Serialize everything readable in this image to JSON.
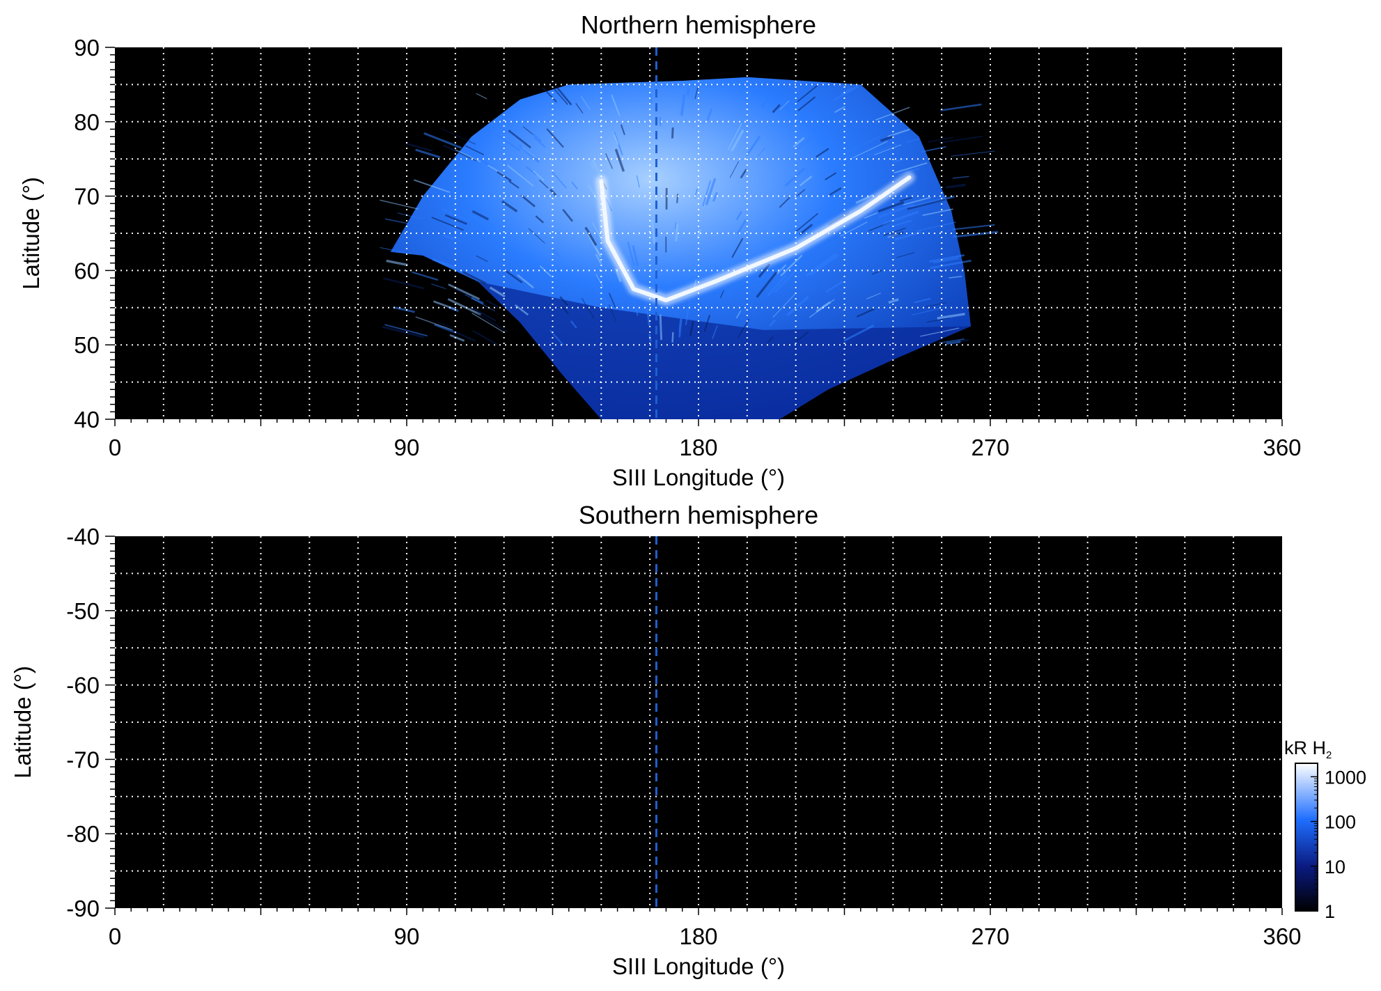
{
  "colors": {
    "background": "#ffffff",
    "plot_bg": "#000000",
    "grid": "#ffffff",
    "marker_line": "#1f5fd0",
    "aurora_dark": "#0a2a9a",
    "aurora_mid": "#1f6fff",
    "aurora_light": "#b9dcff"
  },
  "colorbar": {
    "label_main": "kR H",
    "label_sub": "2",
    "ticks": [
      "1000",
      "100",
      "10",
      "1"
    ],
    "tick_values": [
      1000,
      100,
      10,
      1
    ],
    "scale": "log",
    "range": [
      1,
      2000
    ]
  },
  "chart_data": [
    {
      "type": "heatmap",
      "title": "Northern hemisphere",
      "xlabel": "SIII Longitude (°)",
      "ylabel": "Latitude (°)",
      "xlim": [
        0,
        360
      ],
      "ylim": [
        40,
        90
      ],
      "xticks": [
        0,
        90,
        180,
        270,
        360
      ],
      "xtick_labels": [
        "0",
        "90",
        "180",
        "270",
        "360"
      ],
      "yticks": [
        90,
        80,
        70,
        60,
        50,
        40
      ],
      "ytick_labels": [
        "90",
        "80",
        "70",
        "60",
        "50",
        "40"
      ],
      "grid": true,
      "marker_longitude": 167,
      "coverage_top_latitude": 85,
      "aurora_oval": [
        {
          "lon": 150,
          "lat": 72
        },
        {
          "lon": 152,
          "lat": 64
        },
        {
          "lon": 160,
          "lat": 57.5
        },
        {
          "lon": 170,
          "lat": 56
        },
        {
          "lon": 185,
          "lat": 58.5
        },
        {
          "lon": 210,
          "lat": 63
        },
        {
          "lon": 230,
          "lat": 68
        },
        {
          "lon": 245,
          "lat": 72.5
        }
      ]
    },
    {
      "type": "heatmap",
      "title": "Southern hemisphere",
      "xlabel": "SIII Longitude (°)",
      "ylabel": "Latitude (°)",
      "xlim": [
        0,
        360
      ],
      "ylim": [
        -90,
        -40
      ],
      "xticks": [
        0,
        90,
        180,
        270,
        360
      ],
      "xtick_labels": [
        "0",
        "90",
        "180",
        "270",
        "360"
      ],
      "yticks": [
        -40,
        -50,
        -60,
        -70,
        -80,
        -90
      ],
      "ytick_labels": [
        "-40",
        "-50",
        "-60",
        "-70",
        "-80",
        "-90"
      ],
      "grid": true,
      "marker_longitude": 167
    }
  ]
}
